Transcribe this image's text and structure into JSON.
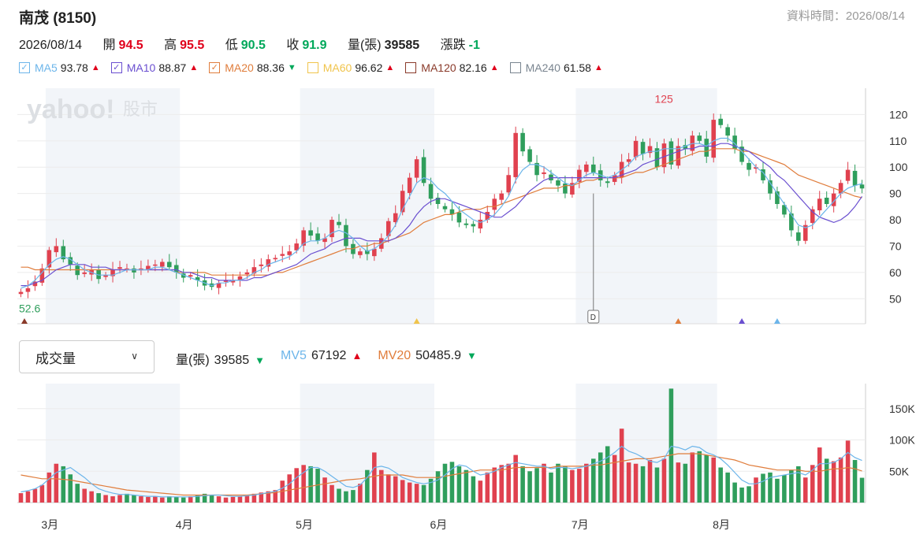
{
  "header": {
    "title": "南茂 (8150)",
    "data_time": "資料時間：2026/08/14"
  },
  "ohlc": {
    "date": "2026/08/14",
    "open_label": "開",
    "open": "94.5",
    "high_label": "高",
    "high": "95.5",
    "low_label": "低",
    "low": "90.5",
    "close_label": "收",
    "close": "91.9",
    "volume_label": "量(張)",
    "volume": "39585",
    "change_label": "漲跌",
    "change": "-1"
  },
  "ma_legend": [
    {
      "name": "MA5",
      "value": "93.78",
      "checked": true,
      "color": "#6cb5ea",
      "trend": "up"
    },
    {
      "name": "MA10",
      "value": "88.87",
      "checked": true,
      "color": "#6a4fd0",
      "trend": "up"
    },
    {
      "name": "MA20",
      "value": "88.36",
      "checked": true,
      "color": "#e07d3c",
      "trend": "down"
    },
    {
      "name": "MA60",
      "value": "96.62",
      "checked": false,
      "color": "#f0c44c",
      "trend": "up"
    },
    {
      "name": "MA120",
      "value": "82.16",
      "checked": false,
      "color": "#8a3a2a",
      "trend": "up"
    },
    {
      "name": "MA240",
      "value": "61.58",
      "checked": false,
      "color": "#7a8590",
      "trend": "up"
    }
  ],
  "watermark": {
    "brand": "yahoo!",
    "sub": "股市"
  },
  "indicator_select": {
    "value": "成交量"
  },
  "volume_legend": [
    {
      "name": "量(張)",
      "value": "39585",
      "color": "#222",
      "trend": "down"
    },
    {
      "name": "MV5",
      "value": "67192",
      "color": "#6cb5ea",
      "trend": "up"
    },
    {
      "name": "MV20",
      "value": "50485.9",
      "color": "#e07d3c",
      "trend": "down"
    }
  ],
  "colors": {
    "up": "#e0414f",
    "down": "#2f9e5c",
    "band": "#f2f5f9"
  },
  "chart_data": {
    "type": "candlestick",
    "price_axis": {
      "ticks": [
        50,
        60,
        70,
        80,
        90,
        100,
        110,
        120
      ],
      "range": [
        40.5,
        130
      ]
    },
    "volume_axis": {
      "ticks": [
        {
          "v": 50000,
          "label": "50K"
        },
        {
          "v": 100000,
          "label": "100K"
        },
        {
          "v": 150000,
          "label": "150K"
        }
      ],
      "range": [
        0,
        190000
      ]
    },
    "x_labels": [
      {
        "index": 4,
        "label": "3月"
      },
      {
        "index": 23,
        "label": "4月"
      },
      {
        "index": 40,
        "label": "5月"
      },
      {
        "index": 59,
        "label": "6月"
      },
      {
        "index": 79,
        "label": "7月"
      },
      {
        "index": 99,
        "label": "8月"
      }
    ],
    "month_bands": [
      [
        3.5,
        22.5
      ],
      [
        39.5,
        58.5
      ],
      [
        78.5,
        98.5
      ]
    ],
    "annotations": {
      "min_label": "52.6",
      "min_index": 0,
      "max_label": "125",
      "max_index": 91,
      "event_marker": "D",
      "event_index": 81
    },
    "close": [
      52.6,
      54.0,
      56.5,
      61.5,
      68.5,
      70.0,
      65.0,
      63.0,
      59.0,
      60.0,
      61.0,
      57.5,
      59.0,
      61.0,
      62.0,
      61.5,
      60.0,
      61.5,
      62.5,
      63.0,
      64.0,
      62.0,
      60.0,
      58.0,
      59.0,
      57.0,
      55.0,
      54.5,
      56.0,
      57.0,
      57.0,
      58.5,
      60.0,
      62.0,
      63.0,
      65.0,
      65.5,
      67.0,
      68.0,
      71.0,
      76.0,
      74.0,
      72.0,
      73.0,
      80.0,
      78.0,
      70.0,
      67.0,
      68.0,
      67.0,
      69.0,
      73.0,
      79.5,
      82.5,
      91.0,
      96.0,
      103.0,
      94.0,
      88.0,
      86.0,
      84.0,
      82.0,
      79.0,
      78.0,
      77.5,
      80.0,
      83.0,
      88.0,
      90.0,
      97.0,
      113.0,
      106.0,
      102.0,
      97.0,
      98.0,
      95.0,
      93.0,
      90.0,
      94.0,
      99.0,
      101.0,
      98.0,
      95.0,
      94.0,
      97.0,
      102.0,
      103.0,
      110.0,
      105.0,
      108.0,
      100.0,
      109.0,
      101.0,
      108.0,
      107.0,
      112.0,
      110.0,
      104.0,
      118.0,
      116.0,
      112.0,
      107.0,
      102.0,
      99.0,
      100.0,
      95.0,
      90.0,
      86.0,
      82.0,
      76.0,
      72.0,
      78.0,
      84.0,
      88.0,
      86.0,
      90.0,
      94.0,
      99.0,
      93.0,
      91.9
    ],
    "ohlc_note": "one candle per trading day; open/high/low derived in chart script from close series",
    "volume": [
      15000,
      18000,
      22000,
      28000,
      48000,
      62000,
      58000,
      45000,
      30000,
      22000,
      18000,
      15000,
      12000,
      10000,
      12000,
      14000,
      12000,
      10000,
      9000,
      10000,
      8000,
      10000,
      9000,
      8000,
      10000,
      12000,
      14000,
      12000,
      10000,
      8000,
      9000,
      10000,
      12000,
      14000,
      16000,
      18000,
      20000,
      35000,
      45000,
      55000,
      60000,
      58000,
      54000,
      40000,
      28000,
      22000,
      18000,
      20000,
      30000,
      52000,
      80000,
      52000,
      45000,
      42000,
      36000,
      32000,
      30000,
      28000,
      38000,
      50000,
      62000,
      65000,
      58000,
      52000,
      42000,
      35000,
      48000,
      56000,
      60000,
      62000,
      76000,
      58000,
      50000,
      55000,
      62000,
      48000,
      62000,
      58000,
      52000,
      54000,
      62000,
      70000,
      80000,
      90000,
      76000,
      118000,
      64000,
      62000,
      58000,
      68000,
      56000,
      70000,
      182000,
      64000,
      62000,
      80000,
      82000,
      76000,
      72000,
      56000,
      48000,
      32000,
      24000,
      26000,
      40000,
      46000,
      48000,
      38000,
      44000,
      52000,
      58000,
      40000,
      60000,
      88000,
      70000,
      66000,
      72000,
      99000,
      68000,
      39585
    ],
    "ma5": [
      54,
      55,
      57,
      60,
      63,
      65,
      66,
      65,
      63,
      61,
      60,
      59,
      59,
      59,
      60,
      61,
      61,
      61,
      61,
      62,
      62,
      61,
      60,
      59,
      58,
      57,
      56,
      55,
      56,
      56,
      57,
      57,
      58,
      60,
      61,
      63,
      64,
      65,
      66,
      68,
      71,
      72,
      72,
      73,
      75,
      76,
      75,
      73,
      70,
      68,
      69,
      71,
      74,
      78,
      84,
      89,
      94,
      96,
      95,
      92,
      90,
      87,
      84,
      82,
      80,
      79,
      80,
      82,
      85,
      89,
      95,
      99,
      101,
      101,
      100,
      98,
      96,
      94,
      93,
      95,
      97,
      98,
      97,
      96,
      97,
      99,
      101,
      104,
      105,
      106,
      106,
      107,
      107,
      107,
      108,
      109,
      109,
      108,
      110,
      111,
      111,
      109,
      106,
      103,
      100,
      98,
      94,
      90,
      86,
      82,
      78,
      77,
      78,
      81,
      84,
      87,
      90,
      92,
      93,
      93.78
    ],
    "ma10": [
      55,
      55,
      56,
      57,
      59,
      61,
      62,
      63,
      63,
      63,
      62,
      62,
      62,
      61,
      61,
      61,
      61,
      61,
      61,
      61,
      61,
      61,
      61,
      60,
      60,
      59,
      58,
      58,
      57,
      57,
      57,
      57,
      57,
      58,
      58,
      59,
      60,
      61,
      62,
      63,
      65,
      67,
      68,
      69,
      71,
      72,
      73,
      73,
      73,
      72,
      72,
      72,
      72,
      73,
      75,
      78,
      82,
      85,
      87,
      88,
      88,
      87,
      86,
      85,
      84,
      83,
      82,
      81,
      81,
      83,
      85,
      88,
      91,
      93,
      95,
      96,
      96,
      96,
      96,
      96,
      96,
      96,
      96,
      96,
      96,
      97,
      98,
      99,
      101,
      102,
      103,
      104,
      105,
      106,
      107,
      107,
      108,
      108,
      108,
      109,
      109,
      108,
      107,
      106,
      104,
      102,
      100,
      97,
      95,
      92,
      89,
      86,
      83,
      81,
      80,
      79,
      80,
      82,
      85,
      88.87
    ],
    "ma20": [
      62,
      62,
      61,
      61,
      61,
      61,
      61,
      61,
      61,
      61,
      61,
      61,
      61,
      61,
      61,
      61,
      61,
      61,
      61,
      61,
      61,
      61,
      60,
      60,
      60,
      60,
      60,
      59,
      59,
      59,
      59,
      59,
      59,
      59,
      59,
      59,
      60,
      60,
      61,
      62,
      63,
      64,
      65,
      66,
      67,
      68,
      69,
      69,
      70,
      70,
      71,
      71,
      72,
      73,
      74,
      75,
      77,
      79,
      80,
      81,
      82,
      82,
      83,
      84,
      84,
      84,
      85,
      85,
      86,
      87,
      88,
      89,
      90,
      91,
      92,
      92,
      92,
      93,
      93,
      94,
      95,
      95,
      96,
      96,
      96,
      96,
      97,
      98,
      98,
      99,
      100,
      101,
      102,
      103,
      104,
      105,
      106,
      106,
      107,
      107,
      107,
      107,
      106,
      106,
      105,
      104,
      103,
      102,
      101,
      99,
      97,
      96,
      95,
      94,
      93,
      92,
      91,
      90,
      89,
      88.36
    ],
    "mv5": [
      17000,
      19000,
      22000,
      28000,
      38000,
      48000,
      52000,
      56000,
      48000,
      40000,
      30000,
      22000,
      18000,
      15000,
      13000,
      13000,
      12000,
      11000,
      10000,
      10000,
      9000,
      9000,
      9000,
      9000,
      9000,
      10000,
      11000,
      12000,
      12000,
      11000,
      10000,
      10000,
      11000,
      12000,
      14000,
      16000,
      18000,
      23000,
      30000,
      40000,
      48000,
      56000,
      56000,
      50000,
      42000,
      34000,
      26000,
      24000,
      28000,
      40000,
      56000,
      58000,
      55000,
      48000,
      40000,
      36000,
      32000,
      30000,
      32000,
      36000,
      44000,
      54000,
      60000,
      58000,
      50000,
      44000,
      46000,
      50000,
      56000,
      60000,
      64000,
      62000,
      60000,
      58000,
      58000,
      54000,
      56000,
      56000,
      54000,
      56000,
      58000,
      62000,
      66000,
      72000,
      80000,
      90000,
      82000,
      78000,
      72000,
      66000,
      64000,
      70000,
      90000,
      88000,
      84000,
      90000,
      88000,
      80000,
      76000,
      70000,
      60000,
      48000,
      36000,
      30000,
      30000,
      34000,
      40000,
      42000,
      44000,
      46000,
      48000,
      44000,
      52000,
      62000,
      62000,
      64000,
      70000,
      80000,
      72000,
      67192
    ],
    "mv20": [
      44000,
      42000,
      40000,
      38000,
      38000,
      38000,
      37000,
      36000,
      34000,
      32000,
      30000,
      28000,
      26000,
      24000,
      22000,
      20000,
      19000,
      18000,
      17000,
      16000,
      15000,
      14000,
      13000,
      12000,
      12000,
      12000,
      12000,
      12000,
      12000,
      12000,
      12000,
      12000,
      12000,
      13000,
      14000,
      15000,
      16000,
      18000,
      20000,
      22000,
      24000,
      26000,
      28000,
      30000,
      32000,
      34000,
      36000,
      37000,
      38000,
      40000,
      42000,
      44000,
      44000,
      44000,
      44000,
      42000,
      40000,
      40000,
      40000,
      40000,
      42000,
      44000,
      46000,
      48000,
      50000,
      52000,
      52000,
      52000,
      52000,
      54000,
      56000,
      56000,
      56000,
      56000,
      56000,
      56000,
      58000,
      58000,
      58000,
      58000,
      58000,
      60000,
      60000,
      62000,
      64000,
      66000,
      68000,
      70000,
      70000,
      70000,
      72000,
      74000,
      76000,
      78000,
      78000,
      78000,
      78000,
      76000,
      74000,
      72000,
      70000,
      68000,
      64000,
      60000,
      58000,
      56000,
      54000,
      52000,
      52000,
      52000,
      52000,
      50000,
      50000,
      50000,
      52000,
      54000,
      54000,
      56000,
      54000,
      50485.9
    ]
  }
}
